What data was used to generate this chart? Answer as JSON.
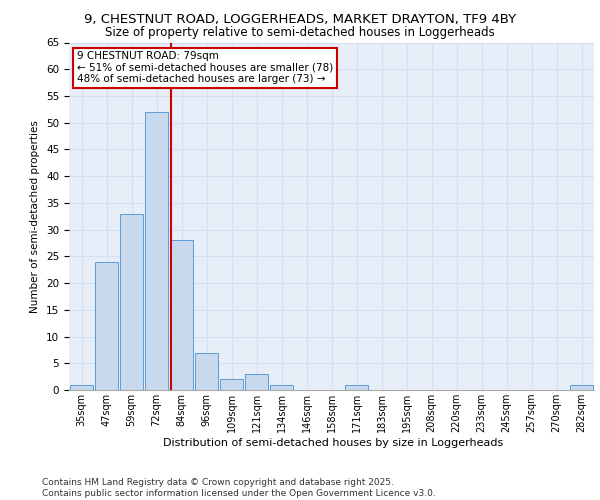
{
  "title1": "9, CHESTNUT ROAD, LOGGERHEADS, MARKET DRAYTON, TF9 4BY",
  "title2": "Size of property relative to semi-detached houses in Loggerheads",
  "xlabel": "Distribution of semi-detached houses by size in Loggerheads",
  "ylabel": "Number of semi-detached properties",
  "bins": [
    35,
    47,
    59,
    72,
    84,
    96,
    109,
    121,
    134,
    146,
    158,
    171,
    183,
    195,
    208,
    220,
    233,
    245,
    257,
    270,
    282
  ],
  "values": [
    1,
    24,
    33,
    52,
    28,
    7,
    2,
    3,
    1,
    0,
    0,
    1,
    0,
    0,
    0,
    0,
    0,
    0,
    0,
    0,
    1
  ],
  "bar_color": "#c8d9ee",
  "bar_edge_color": "#5b9bd5",
  "grid_color": "#d4dff0",
  "bg_color": "#e8eef8",
  "property_line_color": "#cc0000",
  "annotation_title": "9 CHESTNUT ROAD: 79sqm",
  "annotation_line1": "← 51% of semi-detached houses are smaller (78)",
  "annotation_line2": "48% of semi-detached houses are larger (73) →",
  "annotation_box_color": "#cc0000",
  "annotation_bg": "#ffffff",
  "footer1": "Contains HM Land Registry data © Crown copyright and database right 2025.",
  "footer2": "Contains public sector information licensed under the Open Government Licence v3.0.",
  "ylim": [
    0,
    65
  ],
  "yticks": [
    0,
    5,
    10,
    15,
    20,
    25,
    30,
    35,
    40,
    45,
    50,
    55,
    60,
    65
  ],
  "title1_fontsize": 9.5,
  "title2_fontsize": 8.5,
  "ylabel_fontsize": 7.5,
  "xlabel_fontsize": 8.0,
  "tick_fontsize": 7.5,
  "xtick_fontsize": 7.0,
  "footer_fontsize": 6.5,
  "annot_fontsize": 7.5
}
